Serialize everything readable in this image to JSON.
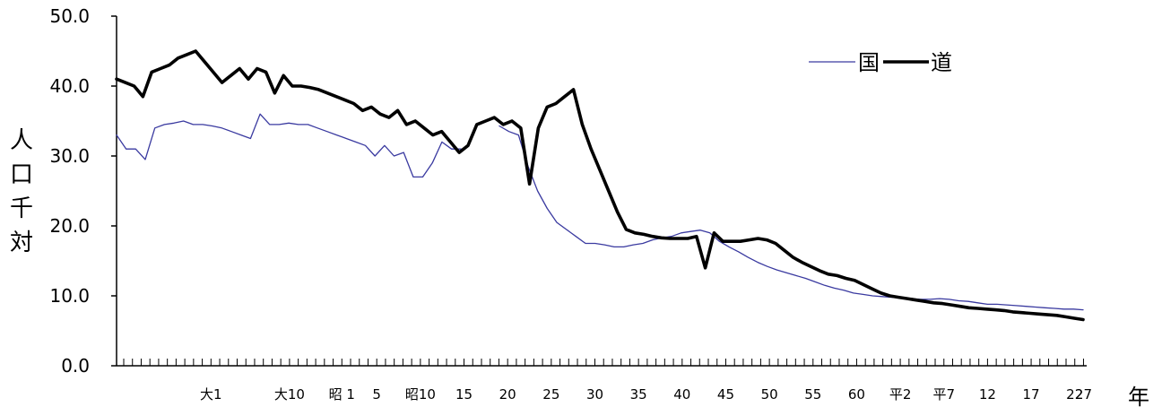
{
  "chart_data": {
    "type": "line",
    "ylim": [
      0,
      50
    ],
    "yticks": [
      "0.0",
      "10.0",
      "20.0",
      "30.0",
      "40.0",
      "50.0"
    ],
    "ylabel_chars": [
      "人",
      "口",
      "千",
      "対"
    ],
    "xlabel": "年",
    "x_tick_labels": [
      "大1",
      "大10",
      "昭 1",
      "5",
      "昭10",
      "15",
      "20",
      "25",
      "30",
      "35",
      "40",
      "45",
      "50",
      "55",
      "60",
      "平2",
      "平7",
      "12",
      "17",
      "22",
      "27"
    ],
    "legend_position": "top-right",
    "series": [
      {
        "name": "国",
        "color": "#3a3aa0",
        "width": 1.3,
        "values": [
          33.0,
          31.0,
          31.0,
          29.5,
          34.0,
          34.5,
          34.7,
          35.0,
          34.5,
          34.5,
          34.3,
          34.0,
          33.5,
          33.0,
          32.5,
          36.0,
          34.5,
          34.5,
          34.7,
          34.5,
          34.5,
          34.0,
          33.5,
          33.0,
          32.5,
          32.0,
          31.5,
          30.0,
          31.5,
          30.0,
          30.5,
          27.0,
          27.0,
          29.0,
          32.0,
          31.0,
          31.0,
          null,
          null,
          null,
          34.3,
          33.5,
          33.0,
          28.5,
          25.0,
          22.5,
          20.5,
          19.5,
          18.5,
          17.5,
          17.5,
          17.3,
          17.0,
          17.0,
          17.3,
          17.5,
          18.0,
          18.3,
          18.5,
          19.0,
          19.2,
          19.4,
          19.0,
          17.8,
          17.0,
          16.3,
          15.5,
          14.8,
          14.2,
          13.7,
          13.3,
          12.9,
          12.5,
          12.0,
          11.5,
          11.1,
          10.8,
          10.4,
          10.2,
          10.0,
          9.9,
          9.8,
          9.7,
          9.6,
          9.5,
          9.5,
          9.6,
          9.5,
          9.3,
          9.2,
          9.0,
          8.8,
          8.8,
          8.7,
          8.6,
          8.5,
          8.4,
          8.3,
          8.2,
          8.1,
          8.1,
          8.0
        ]
      },
      {
        "name": "道",
        "color": "#000000",
        "width": 3.6,
        "values": [
          41.0,
          40.5,
          40.0,
          38.5,
          42.0,
          42.5,
          43.0,
          44.0,
          44.5,
          45.0,
          43.5,
          42.0,
          40.5,
          41.5,
          42.5,
          41.0,
          42.5,
          42.0,
          39.0,
          41.5,
          40.0,
          40.0,
          39.8,
          39.5,
          39.0,
          38.5,
          38.0,
          37.5,
          36.5,
          37.0,
          36.0,
          35.5,
          36.5,
          34.5,
          35.0,
          34.0,
          33.0,
          33.5,
          32.0,
          30.5,
          31.5,
          34.5,
          35.0,
          35.5,
          34.5,
          35.0,
          34.0,
          26.0,
          34.0,
          37.0,
          37.5,
          38.5,
          39.5,
          34.5,
          31.0,
          28.0,
          25.0,
          22.0,
          19.5,
          19.0,
          18.8,
          18.5,
          18.3,
          18.2,
          18.2,
          18.2,
          18.5,
          14.0,
          19.0,
          17.8,
          17.8,
          17.8,
          18.0,
          18.2,
          18.0,
          17.5,
          16.5,
          15.5,
          14.8,
          14.2,
          13.6,
          13.1,
          12.9,
          12.5,
          12.2,
          11.6,
          11.0,
          10.4,
          10.0,
          9.8,
          9.6,
          9.4,
          9.2,
          9.0,
          8.9,
          8.7,
          8.5,
          8.3,
          8.2,
          8.1,
          8.0,
          7.9,
          7.7,
          7.6,
          7.5,
          7.4,
          7.3,
          7.2,
          7.0,
          6.8,
          6.6
        ]
      }
    ]
  }
}
